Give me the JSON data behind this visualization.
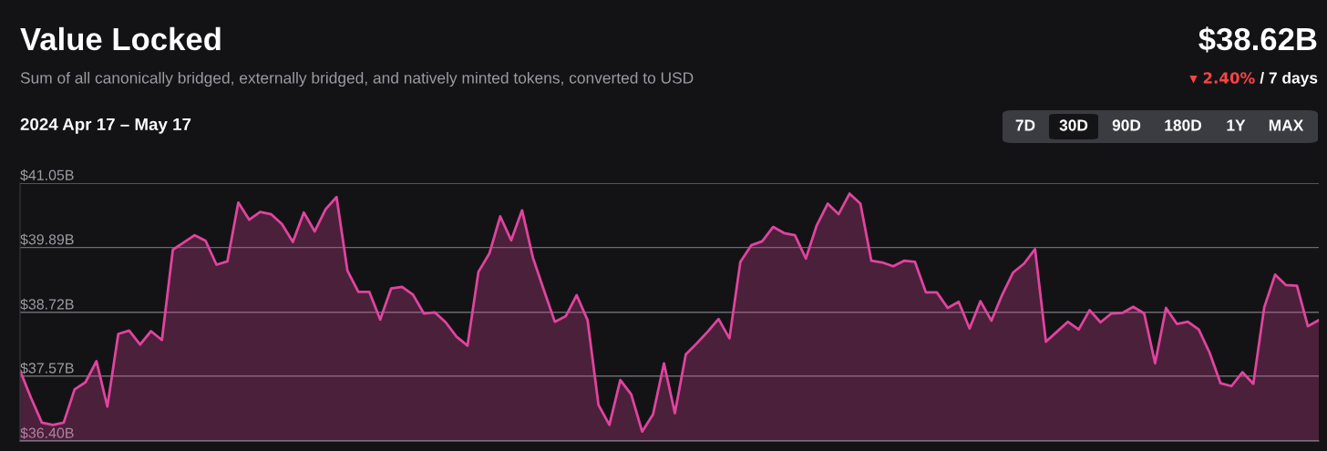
{
  "chart_data": {
    "type": "area",
    "title": "Value Locked",
    "subtitle": "Sum of all canonically bridged, externally bridged, and natively minted tokens, converted to USD",
    "annotations": [
      "$38.62B",
      "▾ 2.40%",
      " / 7 days",
      "2024 Apr 17 – May 17",
      "7D",
      "30D",
      "90D",
      "180D",
      "1Y",
      "MAX"
    ],
    "categories": [
      null,
      null,
      null,
      null,
      null,
      null,
      null,
      null,
      null,
      null,
      null,
      null,
      null,
      null,
      null,
      null,
      null,
      null,
      null,
      null,
      null,
      null,
      null,
      null,
      null,
      null,
      null,
      null,
      null,
      null,
      null,
      null,
      null,
      null,
      null,
      null,
      null,
      null,
      null,
      null,
      null,
      null,
      null,
      null,
      null,
      null,
      null,
      null,
      null,
      null,
      null,
      null,
      null,
      null,
      null,
      null,
      null,
      null,
      null,
      null,
      null,
      null,
      null,
      null,
      null,
      null,
      null,
      null,
      null,
      null,
      null,
      null,
      null,
      null,
      null,
      null,
      null,
      null,
      null,
      null,
      null,
      null,
      null,
      null,
      null,
      null,
      null,
      null,
      null,
      null,
      null,
      null,
      null,
      null,
      null,
      null,
      null,
      null,
      null,
      null,
      null,
      null,
      null,
      null,
      null,
      null,
      null,
      null,
      null,
      null,
      null,
      null,
      null,
      null,
      null,
      null,
      null,
      null,
      null,
      null
    ],
    "series": [
      {
        "color": "#e0449e",
        "values": [
          37.67,
          37.18,
          36.73,
          36.69,
          36.73,
          37.33,
          37.46,
          37.84,
          37.02,
          38.33,
          38.39,
          38.14,
          38.38,
          38.22,
          39.85,
          39.98,
          40.11,
          40.01,
          39.58,
          39.64,
          40.7,
          40.39,
          40.53,
          40.49,
          40.31,
          39.99,
          40.52,
          40.18,
          40.58,
          40.8,
          39.47,
          39.09,
          39.09,
          38.59,
          39.15,
          39.18,
          39.04,
          38.7,
          38.72,
          38.54,
          38.28,
          38.12,
          39.45,
          39.78,
          40.45,
          40.02,
          40.56,
          39.7,
          39.12,
          38.55,
          38.65,
          39.03,
          38.58,
          37.05,
          36.69,
          37.5,
          37.24,
          36.57,
          36.88,
          37.8,
          36.9,
          37.96,
          38.16,
          38.37,
          38.6,
          38.25,
          39.63,
          39.93,
          40.0,
          40.26,
          40.15,
          40.11,
          39.69,
          40.29,
          40.68,
          40.49,
          40.86,
          40.68,
          39.65,
          39.62,
          39.55,
          39.65,
          39.63,
          39.08,
          39.08,
          38.8,
          38.91,
          38.43,
          38.92,
          38.57,
          39.04,
          39.44,
          39.6,
          39.86,
          38.19,
          38.37,
          38.55,
          38.41,
          38.76,
          38.54,
          38.7,
          38.71,
          38.82,
          38.7,
          37.8,
          38.8,
          38.51,
          38.55,
          38.41,
          37.99,
          37.44,
          37.39,
          37.64,
          37.43,
          38.81,
          39.4,
          39.21,
          39.2,
          38.47,
          38.58
        ]
      }
    ],
    "ylim": [
      36.4,
      41.05
    ],
    "yticks": [
      {
        "value": 36.4,
        "label": "$36.40B"
      },
      {
        "value": 37.57,
        "label": "$37.57B"
      },
      {
        "value": 38.72,
        "label": "$38.72B"
      },
      {
        "value": 39.89,
        "label": "$39.89B"
      },
      {
        "value": 41.05,
        "label": "$41.05B"
      }
    ],
    "grid": "y",
    "tick_labels": "y"
  }
}
